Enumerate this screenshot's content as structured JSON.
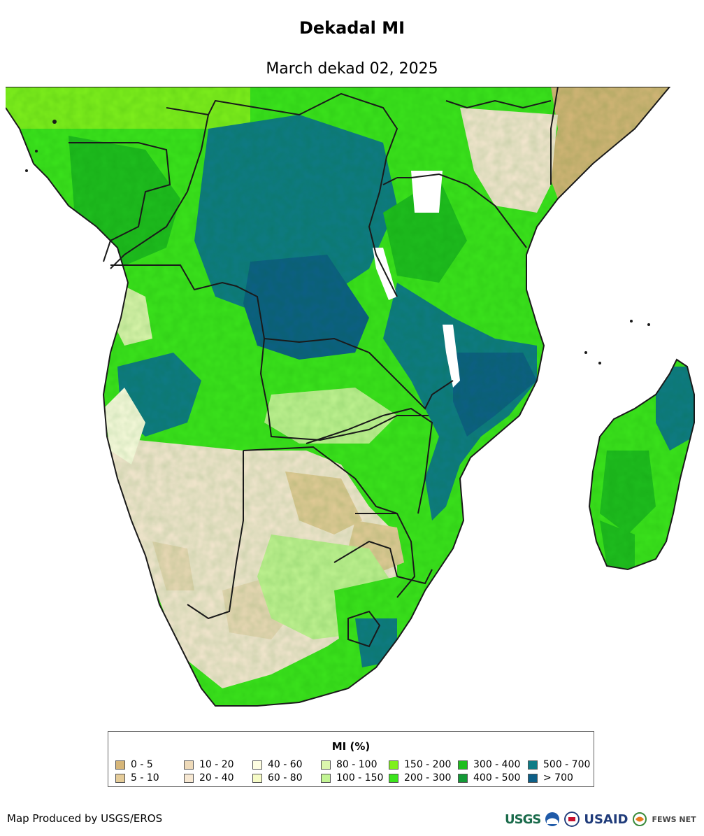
{
  "header": {
    "title": "Dekadal MI",
    "subtitle": "March dekad 02, 2025"
  },
  "legend": {
    "title": "MI (%)",
    "classes": [
      {
        "label": "0 - 5",
        "color": "#d6b679"
      },
      {
        "label": "5 - 10",
        "color": "#e5cc99"
      },
      {
        "label": "10 - 20",
        "color": "#eedab9"
      },
      {
        "label": "20 - 40",
        "color": "#f7e8d2"
      },
      {
        "label": "40 - 60",
        "color": "#fdfde1"
      },
      {
        "label": "60 - 80",
        "color": "#f6fbc6"
      },
      {
        "label": "80 - 100",
        "color": "#dcf7ad"
      },
      {
        "label": "100 - 150",
        "color": "#c2f493"
      },
      {
        "label": "150 - 200",
        "color": "#7ff01d"
      },
      {
        "label": "200 - 300",
        "color": "#3ce51d"
      },
      {
        "label": "300 - 400",
        "color": "#1fbe1f"
      },
      {
        "label": "400 - 500",
        "color": "#139a36"
      },
      {
        "label": "500 - 700",
        "color": "#0f7b86"
      },
      {
        "label": "> 700",
        "color": "#0d5f87"
      }
    ]
  },
  "footer": {
    "credit": "Map Produced by USGS/EROS",
    "logos": {
      "usgs": "USGS",
      "usaid": "USAID",
      "fews": "FEWS NET"
    }
  },
  "map": {
    "region": "Southern Africa",
    "colors": {
      "ocean": "#ffffff",
      "border": "#1a1a1a",
      "nodata": "#ffffff"
    }
  }
}
